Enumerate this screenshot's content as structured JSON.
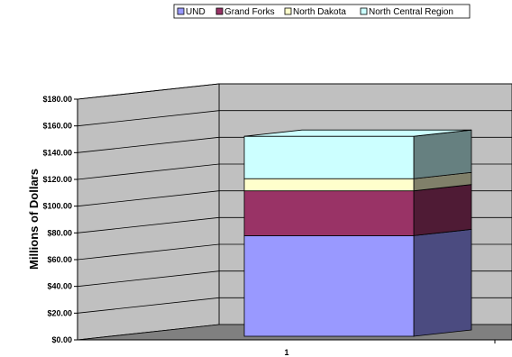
{
  "chart_data": {
    "type": "bar",
    "stacked": true,
    "three_d": true,
    "categories": [
      "1"
    ],
    "series": [
      {
        "name": "UND",
        "values": [
          83
        ],
        "color": "#9999FF",
        "side_color": "#4B4B80"
      },
      {
        "name": "Grand Forks",
        "values": [
          37
        ],
        "color": "#993366",
        "side_color": "#4F1B35"
      },
      {
        "name": "North Dakota",
        "values": [
          10
        ],
        "color": "#FFFFCC",
        "side_color": "#80806A"
      },
      {
        "name": "North Central Region",
        "values": [
          35
        ],
        "color": "#CCFFFF",
        "side_color": "#668080"
      }
    ],
    "ylabel": "Millions of Dollars",
    "ylim": [
      0,
      180
    ],
    "yticks": [
      "$0.00",
      "$20.00",
      "$40.00",
      "$60.00",
      "$80.00",
      "$100.00",
      "$120.00",
      "$140.00",
      "$160.00",
      "$180.00"
    ],
    "grid": true,
    "legend_position": "top"
  }
}
